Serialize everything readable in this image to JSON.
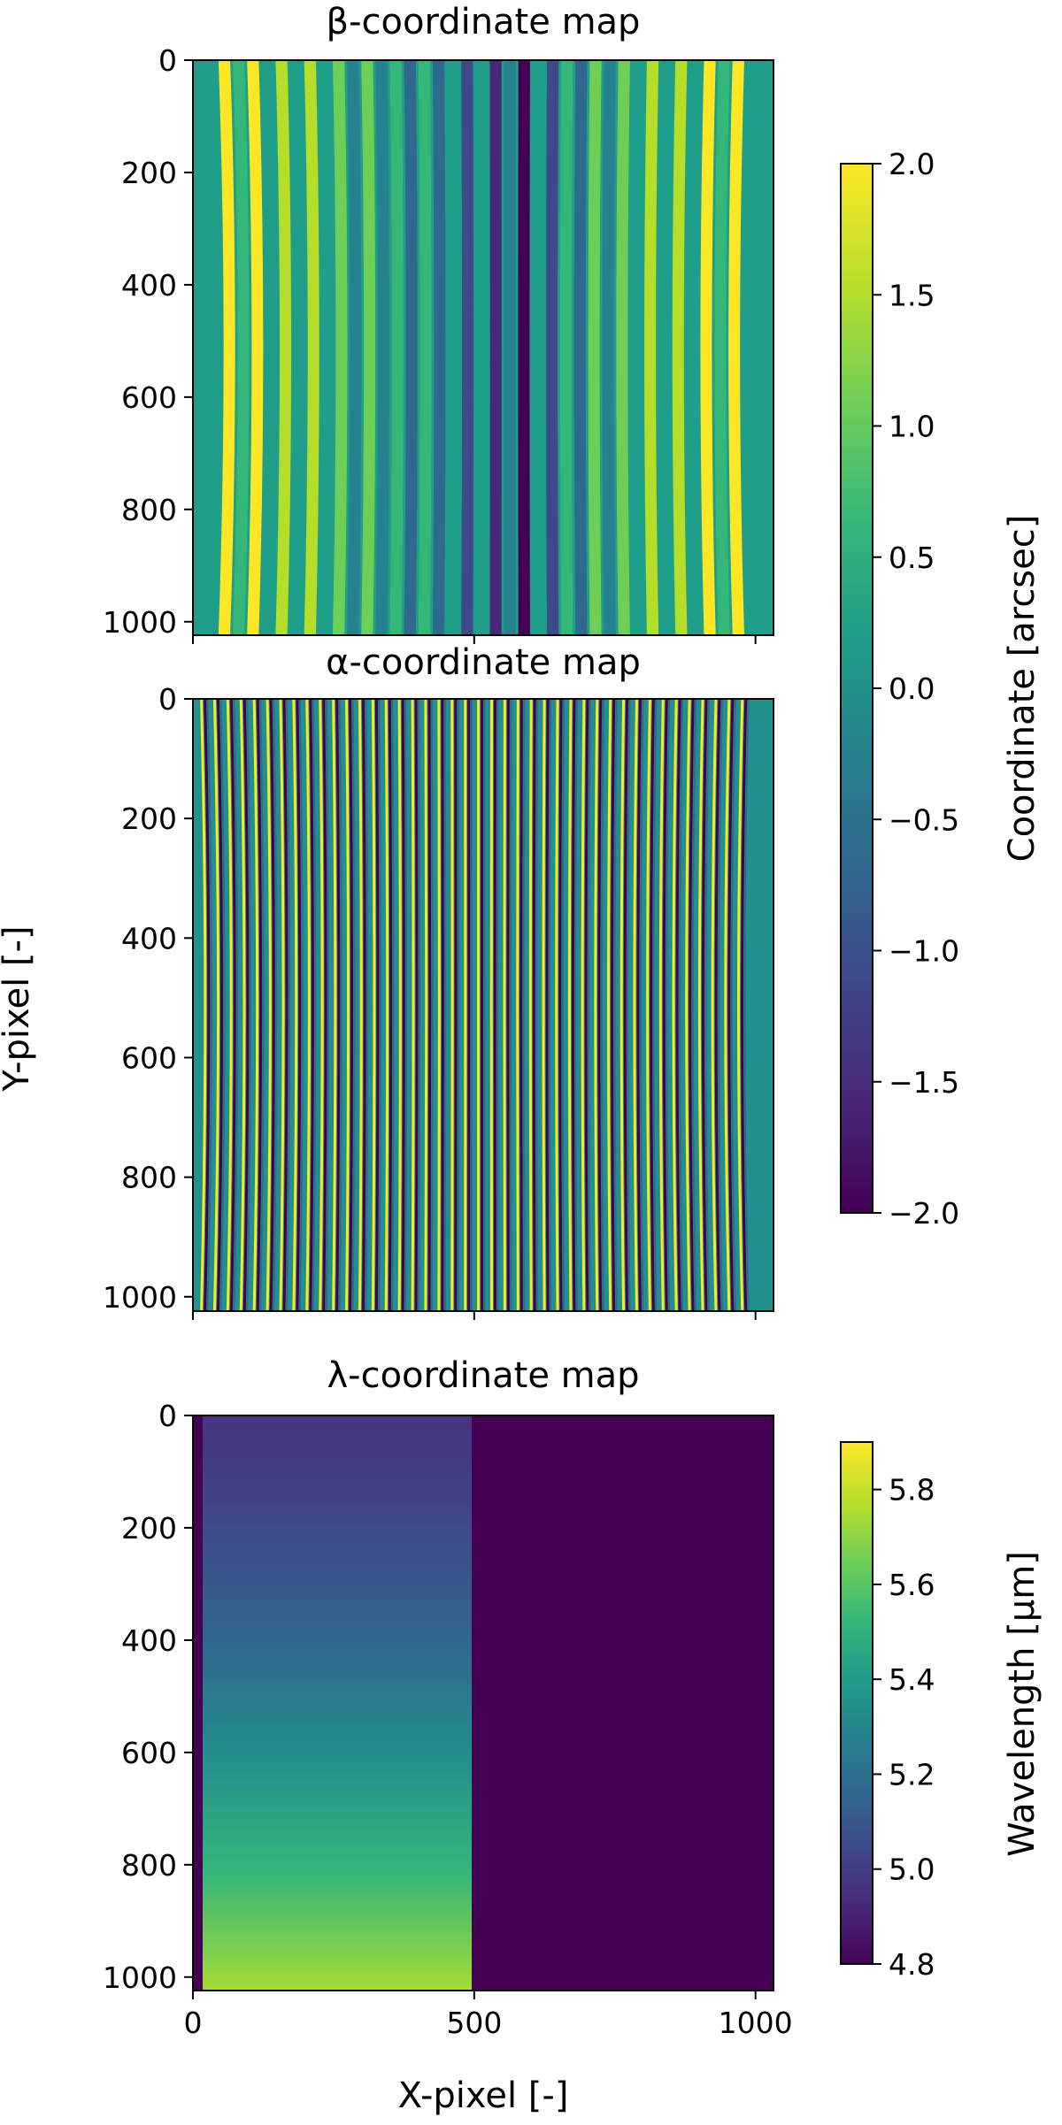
{
  "ylabel": "Y-pixel [-]",
  "xlabel": "X-pixel [-]",
  "colors": {
    "viridis": [
      "#440154",
      "#482878",
      "#3e4989",
      "#31688e",
      "#26828e",
      "#1f9e89",
      "#35b779",
      "#6ece58",
      "#b5de2b",
      "#fde725"
    ]
  },
  "chart_data": [
    {
      "type": "heatmap",
      "title": "β-coordinate map",
      "xlim": [
        0,
        1032
      ],
      "ylim": [
        1024,
        0
      ],
      "xticks": [
        "500",
        "1000"
      ],
      "yticks": [
        "0",
        "200",
        "400",
        "600",
        "800",
        "1000"
      ],
      "clim": [
        -2.0,
        2.0
      ],
      "pattern": "vertical curved slice stripes, 21 slices per half-detector, values cycling -2.0 to 2.0 arcsec",
      "stripe_values": [
        0.0,
        2.0,
        0.6,
        1.8,
        0.4,
        1.6,
        0.2,
        1.4,
        0.0,
        1.2,
        -0.2,
        1.0,
        -0.4,
        0.8,
        -0.6,
        0.6,
        -0.8,
        0.4,
        -1.0,
        0.2,
        -1.4,
        -0.2,
        -2.0,
        0.2,
        -1.2,
        0.6,
        -0.8,
        1.0,
        -0.4,
        1.2,
        0.0,
        1.4,
        0.2,
        1.6,
        0.4,
        1.8,
        0.6,
        2.0,
        0.0
      ]
    },
    {
      "type": "heatmap",
      "title": "α-coordinate map",
      "xlim": [
        0,
        1032
      ],
      "ylim": [
        1024,
        0
      ],
      "xticks": [
        "500",
        "1000"
      ],
      "yticks": [
        "0",
        "200",
        "400",
        "600",
        "800",
        "1000"
      ],
      "clim": [
        -2.0,
        2.0
      ],
      "colorbar_label": "Coordinate [arcsec]",
      "colorbar_ticks": [
        "2.0",
        "1.5",
        "1.0",
        "0.5",
        "0.0",
        "−0.5",
        "−1.0",
        "−1.5",
        "−2.0"
      ],
      "pattern": "narrow gradient stripes (-2.0 to 2.0 arcsec across each slice), ~42 slices"
    },
    {
      "type": "heatmap",
      "title": "λ-coordinate map",
      "xlim": [
        0,
        1032
      ],
      "ylim": [
        1024,
        0
      ],
      "xticks": [
        "0",
        "500",
        "1000"
      ],
      "yticks": [
        "0",
        "200",
        "400",
        "600",
        "800",
        "1000"
      ],
      "clim": [
        4.8,
        5.9
      ],
      "colorbar_label": "Wavelength [μm]",
      "colorbar_ticks": [
        "5.8",
        "5.6",
        "5.4",
        "5.2",
        "5.0",
        "4.8"
      ],
      "pattern": "left half (x 0-500) wavelength rising from ~5.0 μm at y=0 to ~5.85 μm at y=1024; right half at 4.8 μm (no data)"
    }
  ]
}
